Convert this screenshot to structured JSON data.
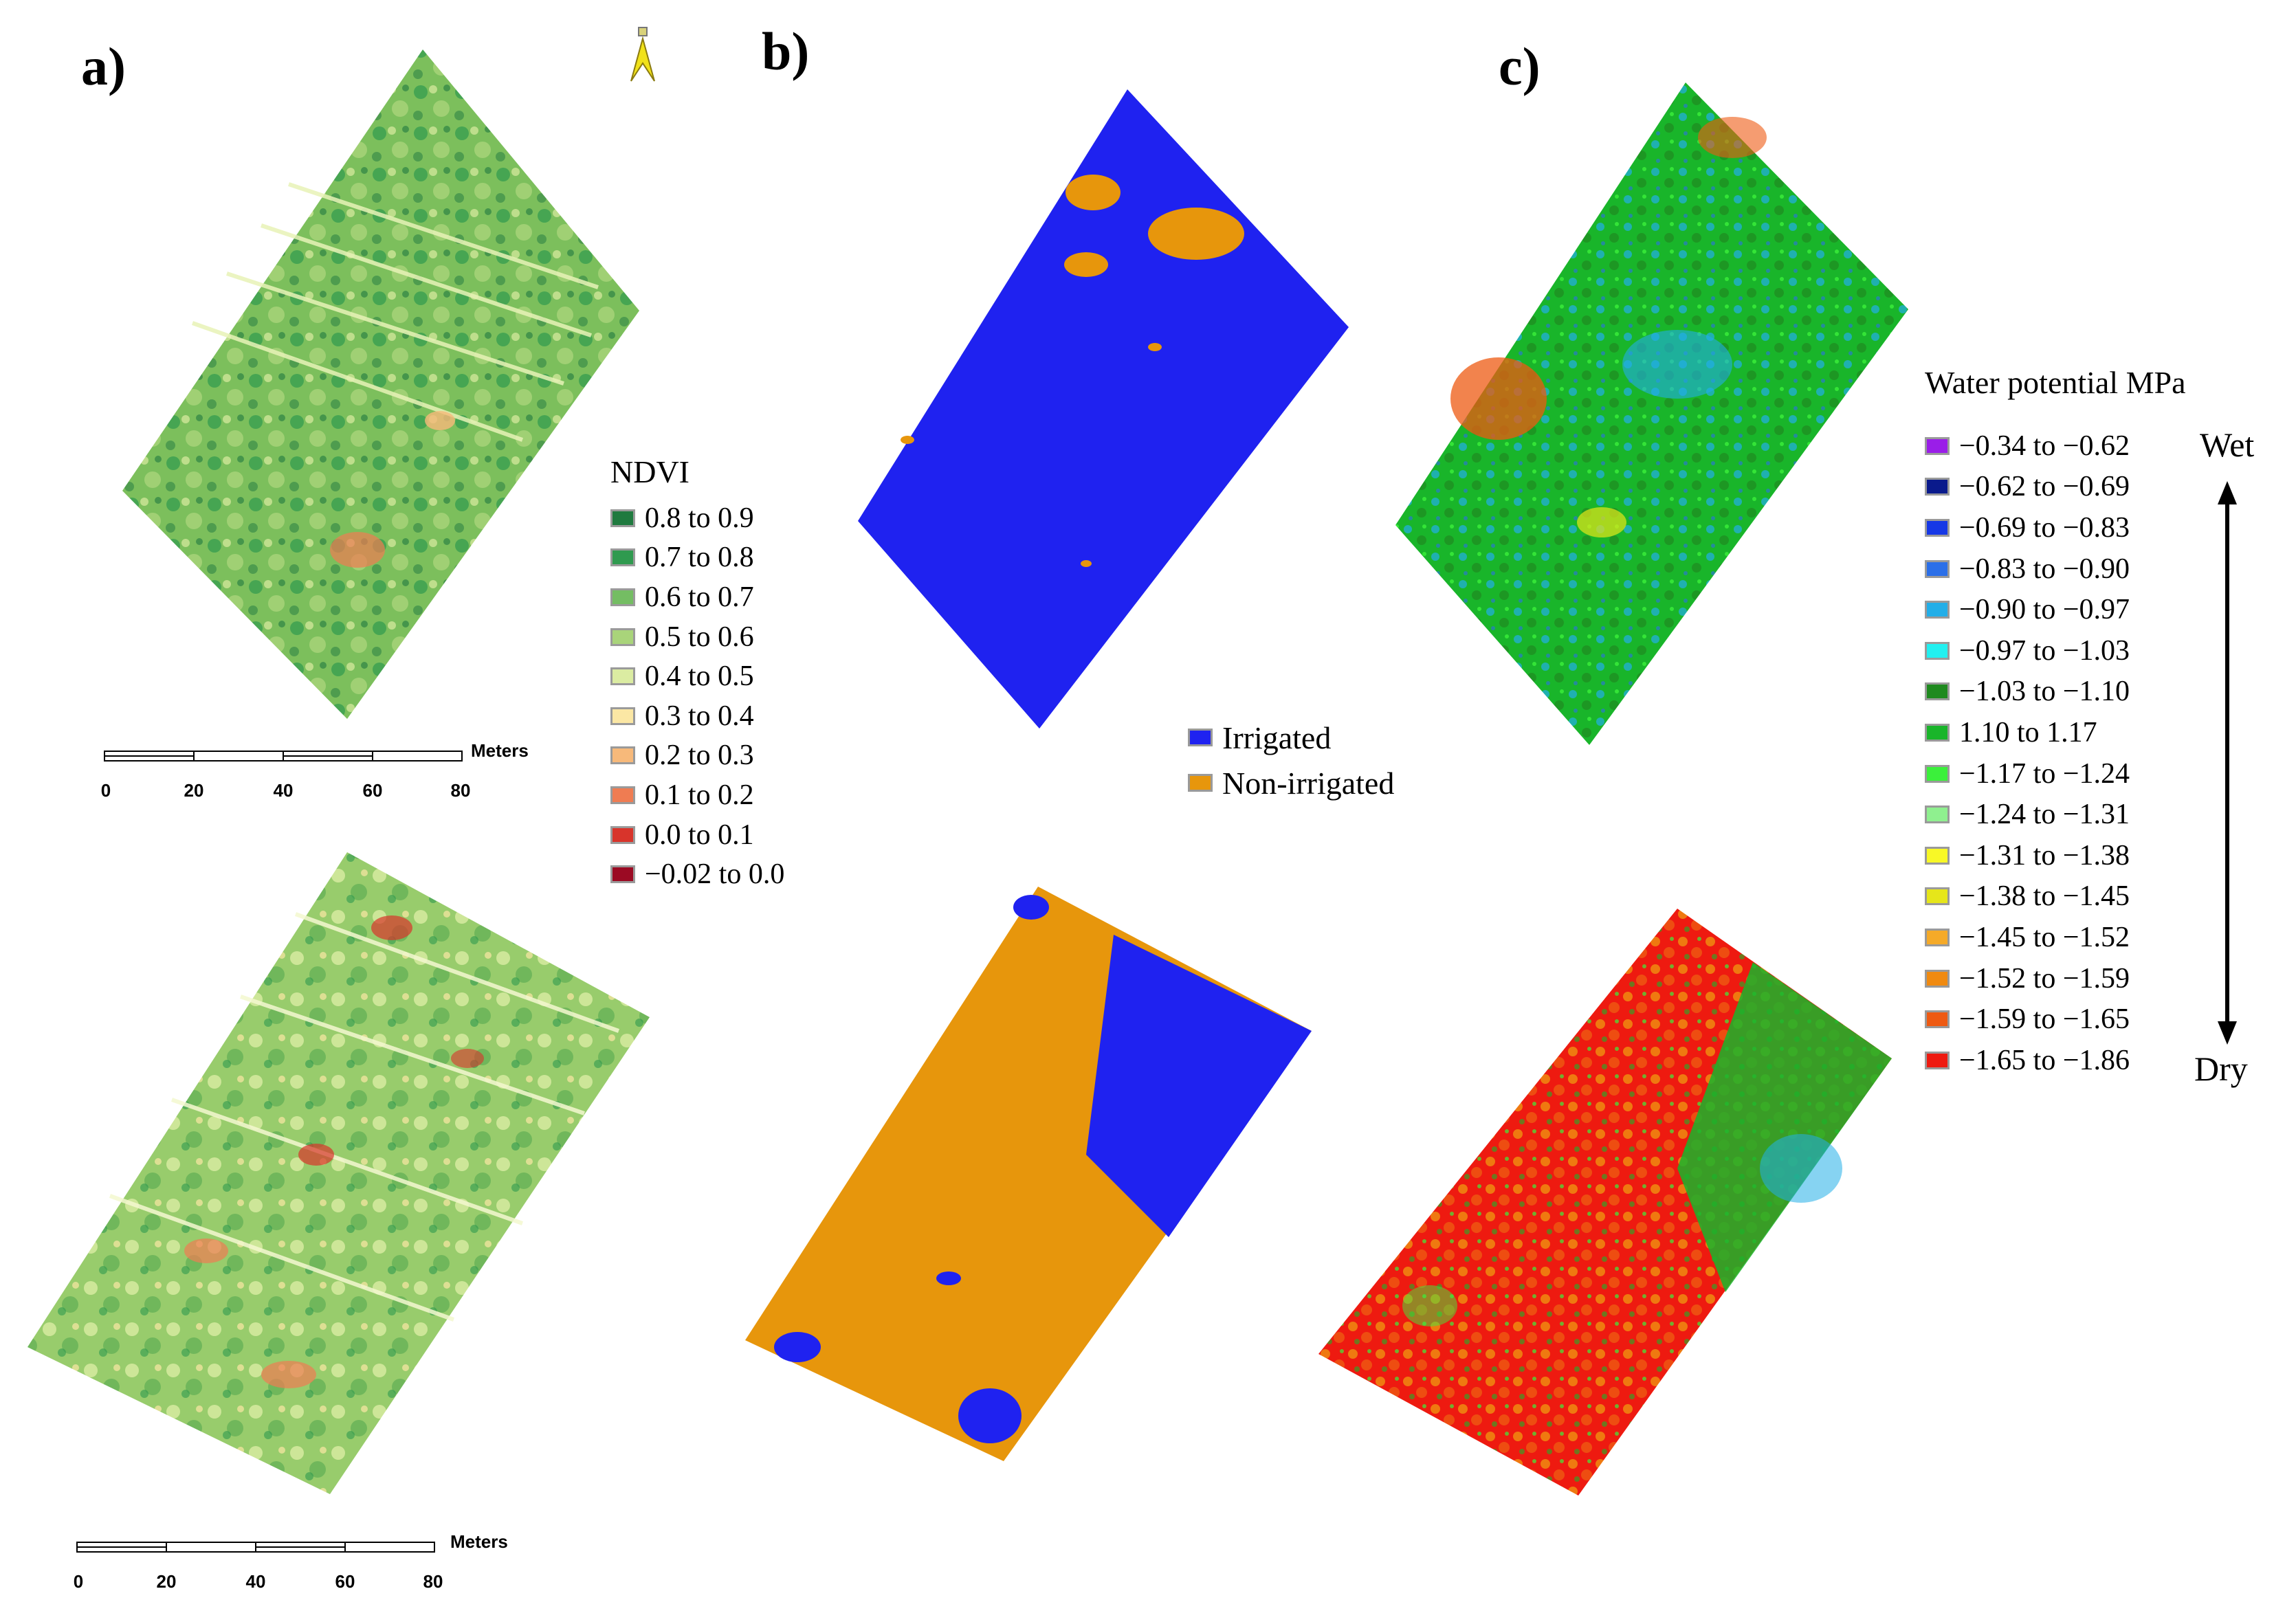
{
  "panels": {
    "a": "a)",
    "b": "b)",
    "c": "c)"
  },
  "colors": {
    "field_green": "#7cbf5c",
    "irrigated": "#1f22f0",
    "non_irrigated": "#e7960c",
    "wet_green": "#19b52a",
    "dry_red": "#e93b18"
  },
  "north_arrow_icon": "north-arrow-icon",
  "ndvi_legend": {
    "title": "NDVI",
    "items": [
      {
        "label": "0.8 to 0.9",
        "color": "#1f7a3f"
      },
      {
        "label": "0.7 to 0.8",
        "color": "#2f9a4f"
      },
      {
        "label": "0.6 to 0.7",
        "color": "#74bd63"
      },
      {
        "label": "0.5 to 0.6",
        "color": "#a9d47a"
      },
      {
        "label": "0.4 to 0.5",
        "color": "#dbeca2"
      },
      {
        "label": "0.3 to 0.4",
        "color": "#fbe7a4"
      },
      {
        "label": "0.2 to 0.3",
        "color": "#f7b97a"
      },
      {
        "label": "0.1 to 0.2",
        "color": "#ef7c52"
      },
      {
        "label": "0.0 to 0.1",
        "color": "#d8342b"
      },
      {
        "label": "−0.02 to 0.0",
        "color": "#9b0a23"
      }
    ]
  },
  "irrigation_legend": {
    "items": [
      {
        "label": "Irrigated",
        "color": "#1f22f0"
      },
      {
        "label": "Non-irrigated",
        "color": "#e7960c"
      }
    ]
  },
  "water_potential_legend": {
    "title": "Water potential MPa",
    "wet_label": "Wet",
    "dry_label": "Dry",
    "items": [
      {
        "label": "−0.34 to −0.62",
        "color": "#9a1ee8"
      },
      {
        "label": "−0.62 to −0.69",
        "color": "#0a1a8c"
      },
      {
        "label": "−0.69 to −0.83",
        "color": "#1638e6"
      },
      {
        "label": "−0.83 to −0.90",
        "color": "#2b6fe8"
      },
      {
        "label": "−0.90 to −0.97",
        "color": "#22aee8"
      },
      {
        "label": "−0.97 to −1.03",
        "color": "#22f0f0"
      },
      {
        "label": "−1.03 to −1.10",
        "color": "#1f8a1f"
      },
      {
        "label": "1.10 to   1.17",
        "color": "#19b52a"
      },
      {
        "label": "−1.17 to −1.24",
        "color": "#3bf03b"
      },
      {
        "label": "−1.24 to −1.31",
        "color": "#8ff08f"
      },
      {
        "label": "−1.31 to −1.38",
        "color": "#f8f826"
      },
      {
        "label": "−1.38 to −1.45",
        "color": "#e6e61a"
      },
      {
        "label": "−1.45 to −1.52",
        "color": "#f5aa28"
      },
      {
        "label": "−1.52 to −1.59",
        "color": "#f08a10"
      },
      {
        "label": "−1.59 to −1.65",
        "color": "#ee5a12"
      },
      {
        "label": "−1.65 to −1.86",
        "color": "#ee1a10"
      }
    ]
  },
  "scale_bars": [
    {
      "unit": "Meters",
      "ticks": [
        "0",
        "20",
        "40",
        "60",
        "80"
      ]
    },
    {
      "unit": "Meters",
      "ticks": [
        "0",
        "20",
        "40",
        "60",
        "80"
      ]
    }
  ]
}
